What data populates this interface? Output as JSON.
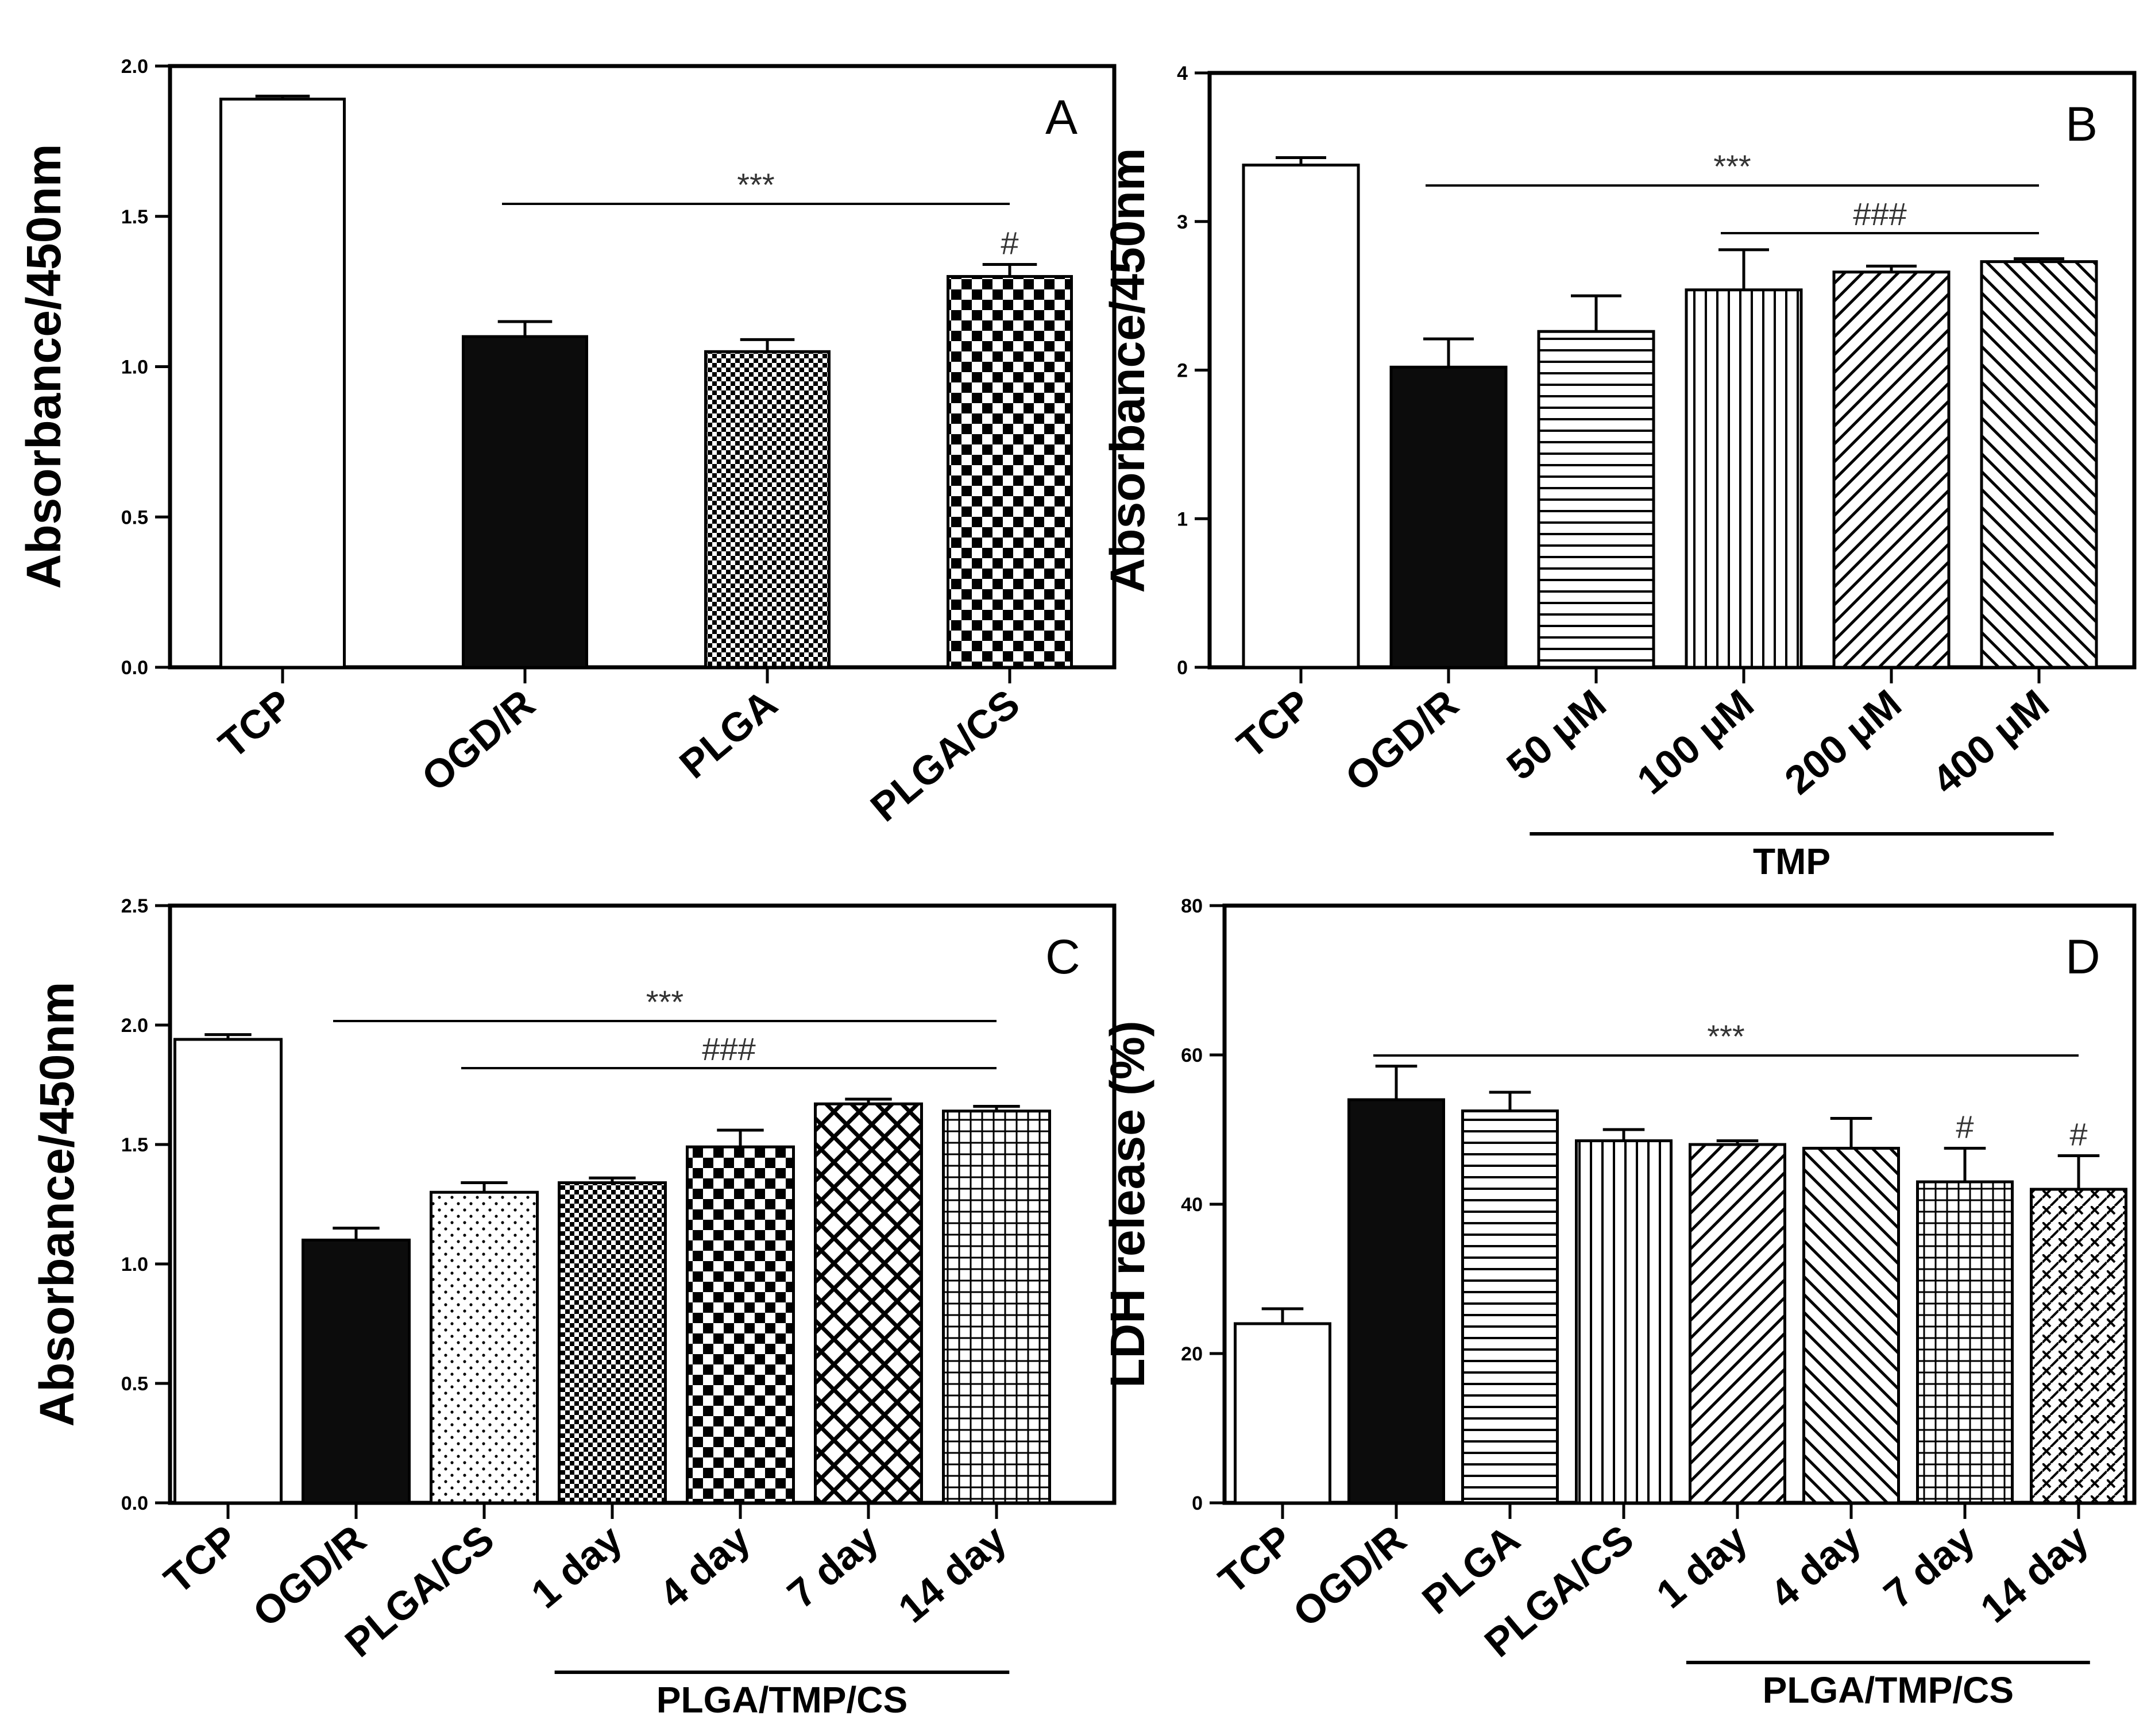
{
  "chart_data": [
    {
      "panel": "A",
      "type": "bar",
      "ylabel": "Absorbance/450nm",
      "ylim": [
        0,
        2.0
      ],
      "yticks": [
        0.0,
        0.5,
        1.0,
        1.5,
        2.0
      ],
      "ytick_labels": [
        "0.0",
        "0.5",
        "1.0",
        "1.5",
        "2.0"
      ],
      "categories": [
        "TCP",
        "OGD/R",
        "PLGA",
        "PLGA/CS"
      ],
      "values": [
        1.89,
        1.1,
        1.05,
        1.3
      ],
      "errors": [
        0.01,
        0.05,
        0.04,
        0.04
      ],
      "patterns": [
        "white",
        "black",
        "fine-check",
        "check"
      ],
      "significance": [
        {
          "label": "***",
          "from": 1,
          "to": 3
        },
        {
          "label": "#",
          "on": 3
        }
      ],
      "group_label": null
    },
    {
      "panel": "B",
      "type": "bar",
      "ylabel": "Absorbance/450nm",
      "ylim": [
        0,
        4
      ],
      "yticks": [
        0,
        1,
        2,
        3,
        4
      ],
      "ytick_labels": [
        "0",
        "1",
        "2",
        "3",
        "4"
      ],
      "categories": [
        "TCP",
        "OGD/R",
        "50 μM",
        "100 μM",
        "200 μM",
        "400 μM"
      ],
      "values": [
        3.38,
        2.02,
        2.26,
        2.54,
        2.66,
        2.73
      ],
      "errors": [
        0.05,
        0.19,
        0.24,
        0.27,
        0.04,
        0.02
      ],
      "patterns": [
        "white",
        "black",
        "hlines",
        "vlines",
        "diag-right",
        "diag-left"
      ],
      "significance": [
        {
          "label": "***",
          "from": 1,
          "to": 5
        },
        {
          "label": "###",
          "from": 3,
          "to": 5
        }
      ],
      "group_label": {
        "text": "TMP",
        "from": 2,
        "to": 5
      }
    },
    {
      "panel": "C",
      "type": "bar",
      "ylabel": "Absorbance/450nm",
      "ylim": [
        0,
        2.5
      ],
      "yticks": [
        0.0,
        0.5,
        1.0,
        1.5,
        2.0,
        2.5
      ],
      "ytick_labels": [
        "0.0",
        "0.5",
        "1.0",
        "1.5",
        "2.0",
        "2.5"
      ],
      "categories": [
        "TCP",
        "OGD/R",
        "PLGA/CS",
        "1 day",
        "4 day",
        "7 day",
        "14 day"
      ],
      "values": [
        1.94,
        1.1,
        1.3,
        1.34,
        1.49,
        1.67,
        1.64
      ],
      "errors": [
        0.02,
        0.05,
        0.04,
        0.02,
        0.07,
        0.02,
        0.02
      ],
      "patterns": [
        "white",
        "black",
        "dots",
        "fine-check",
        "check",
        "crosshatch-diag",
        "grid"
      ],
      "significance": [
        {
          "label": "***",
          "from": 1,
          "to": 6
        },
        {
          "label": "###",
          "from": 2,
          "to": 6
        }
      ],
      "group_label": {
        "text": "PLGA/TMP/CS",
        "from": 3,
        "to": 6
      }
    },
    {
      "panel": "D",
      "type": "bar",
      "ylabel": "LDH release (%)",
      "ylim": [
        0,
        80
      ],
      "yticks": [
        0,
        20,
        40,
        60,
        80
      ],
      "ytick_labels": [
        "0",
        "20",
        "40",
        "60",
        "80"
      ],
      "categories": [
        "TCP",
        "OGD/R",
        "PLGA",
        "PLGA/CS",
        "1 day",
        "4 day",
        "7 day",
        "14 day"
      ],
      "values": [
        24,
        54,
        52.5,
        48.5,
        48,
        47.5,
        43,
        42
      ],
      "errors": [
        2,
        4.5,
        2.5,
        1.5,
        0.5,
        4,
        4.5,
        4.5
      ],
      "patterns": [
        "white",
        "black",
        "hlines",
        "vlines",
        "diag-right",
        "diag-left",
        "grid",
        "weave"
      ],
      "significance": [
        {
          "label": "***",
          "from": 1,
          "to": 7
        },
        {
          "label": "#",
          "on": 6
        },
        {
          "label": "#",
          "on": 7
        }
      ],
      "group_label": {
        "text": "PLGA/TMP/CS",
        "from": 4,
        "to": 7
      }
    }
  ]
}
